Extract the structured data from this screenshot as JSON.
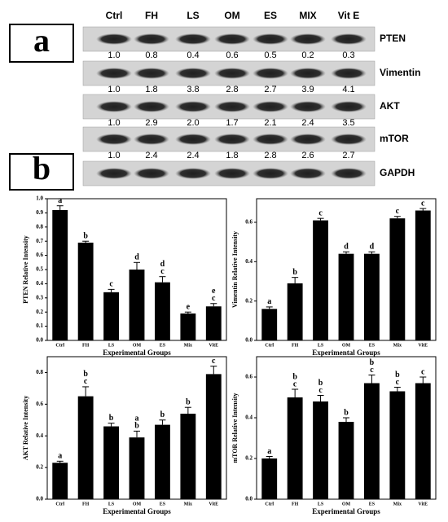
{
  "panels": {
    "a": "a",
    "b": "b"
  },
  "blot": {
    "columns": [
      "Ctrl",
      "FH",
      "LS",
      "OM",
      "ES",
      "MIX",
      "Vit E"
    ],
    "rows": [
      {
        "name": "PTEN",
        "values": [
          "1.0",
          "0.8",
          "0.4",
          "0.6",
          "0.5",
          "0.2",
          "0.3"
        ]
      },
      {
        "name": "Vimentin",
        "values": [
          "1.0",
          "1.8",
          "3.8",
          "2.8",
          "2.7",
          "3.9",
          "4.1"
        ]
      },
      {
        "name": "AKT",
        "values": [
          "1.0",
          "2.9",
          "2.0",
          "1.7",
          "2.1",
          "2.4",
          "3.5"
        ]
      },
      {
        "name": "mTOR",
        "values": [
          "1.0",
          "2.4",
          "2.4",
          "1.8",
          "2.8",
          "2.6",
          "2.7"
        ]
      },
      {
        "name": "GAPDH"
      }
    ]
  },
  "chart_data": [
    {
      "type": "bar",
      "xlabel": "Experimental Groups",
      "ylabel": "PTEN Relative Intensity",
      "categories": [
        "Ctrl",
        "FH",
        "LS",
        "OM",
        "ES",
        "Mix",
        "VitE"
      ],
      "values": [
        0.92,
        0.69,
        0.34,
        0.5,
        0.41,
        0.19,
        0.24
      ],
      "errors": [
        0.03,
        0.01,
        0.02,
        0.05,
        0.04,
        0.01,
        0.02
      ],
      "annotations": [
        [
          "a"
        ],
        [
          "b"
        ],
        [
          "c"
        ],
        [
          "d"
        ],
        [
          "d",
          "c"
        ],
        [
          "e"
        ],
        [
          "e",
          "c"
        ]
      ],
      "color": "#000000",
      "ylim": [
        0,
        1.0
      ],
      "yticks": [
        {
          "value": 0,
          "label": "0.0"
        },
        0.1,
        0.2,
        0.3,
        0.4,
        0.5,
        0.6,
        0.7,
        0.8,
        0.9,
        {
          "value": 1,
          "label": "1.0"
        }
      ]
    },
    {
      "type": "bar",
      "xlabel": "Experimental Groups",
      "ylabel": "Vimentin Relative Intensity",
      "categories": [
        "Ctrl",
        "FH",
        "LS",
        "OM",
        "ES",
        "Mix",
        "VitE"
      ],
      "values": [
        0.16,
        0.29,
        0.61,
        0.44,
        0.44,
        0.62,
        0.66
      ],
      "errors": [
        0.01,
        0.03,
        0.01,
        0.01,
        0.01,
        0.01,
        0.01
      ],
      "annotations": [
        [
          "a"
        ],
        [
          "b"
        ],
        [
          "c"
        ],
        [
          "d"
        ],
        [
          "d"
        ],
        [
          "c"
        ],
        [
          "c"
        ]
      ],
      "color": "#000000",
      "ylim": [
        0,
        0.72
      ],
      "yticks": [
        {
          "value": 0,
          "label": "0.0"
        },
        0.2,
        0.4,
        0.6
      ]
    },
    {
      "type": "bar",
      "xlabel": "Experimental Groups",
      "ylabel": "AKT Relative Intensity",
      "categories": [
        "Ctrl",
        "FH",
        "LS",
        "OM",
        "ES",
        "Mix",
        "VitE"
      ],
      "values": [
        0.23,
        0.65,
        0.46,
        0.39,
        0.47,
        0.54,
        0.79
      ],
      "errors": [
        0.01,
        0.06,
        0.02,
        0.04,
        0.03,
        0.04,
        0.05
      ],
      "annotations": [
        [
          "a"
        ],
        [
          "b",
          "c"
        ],
        [
          "b"
        ],
        [
          "a",
          "b"
        ],
        [
          "b"
        ],
        [
          "b"
        ],
        [
          "c"
        ]
      ],
      "color": "#000000",
      "ylim": [
        0,
        0.9
      ],
      "yticks": [
        {
          "value": 0,
          "label": "0.0"
        },
        0.2,
        0.4,
        0.6,
        0.8
      ]
    },
    {
      "type": "bar",
      "xlabel": "Experimental Groups",
      "ylabel": "mTOR Relative Intensity",
      "categories": [
        "Ctrl",
        "FH",
        "LS",
        "OM",
        "ES",
        "Mix",
        "VitE"
      ],
      "values": [
        0.2,
        0.5,
        0.48,
        0.38,
        0.57,
        0.53,
        0.57
      ],
      "errors": [
        0.01,
        0.04,
        0.03,
        0.02,
        0.04,
        0.02,
        0.03
      ],
      "annotations": [
        [
          "a"
        ],
        [
          "b",
          "c"
        ],
        [
          "b",
          "c"
        ],
        [
          "b"
        ],
        [
          "b",
          "c"
        ],
        [
          "b",
          "c"
        ],
        [
          "c"
        ]
      ],
      "color": "#000000",
      "ylim": [
        0,
        0.7
      ],
      "yticks": [
        {
          "value": 0,
          "label": "0.0"
        },
        0.2,
        0.4,
        0.6
      ]
    }
  ]
}
